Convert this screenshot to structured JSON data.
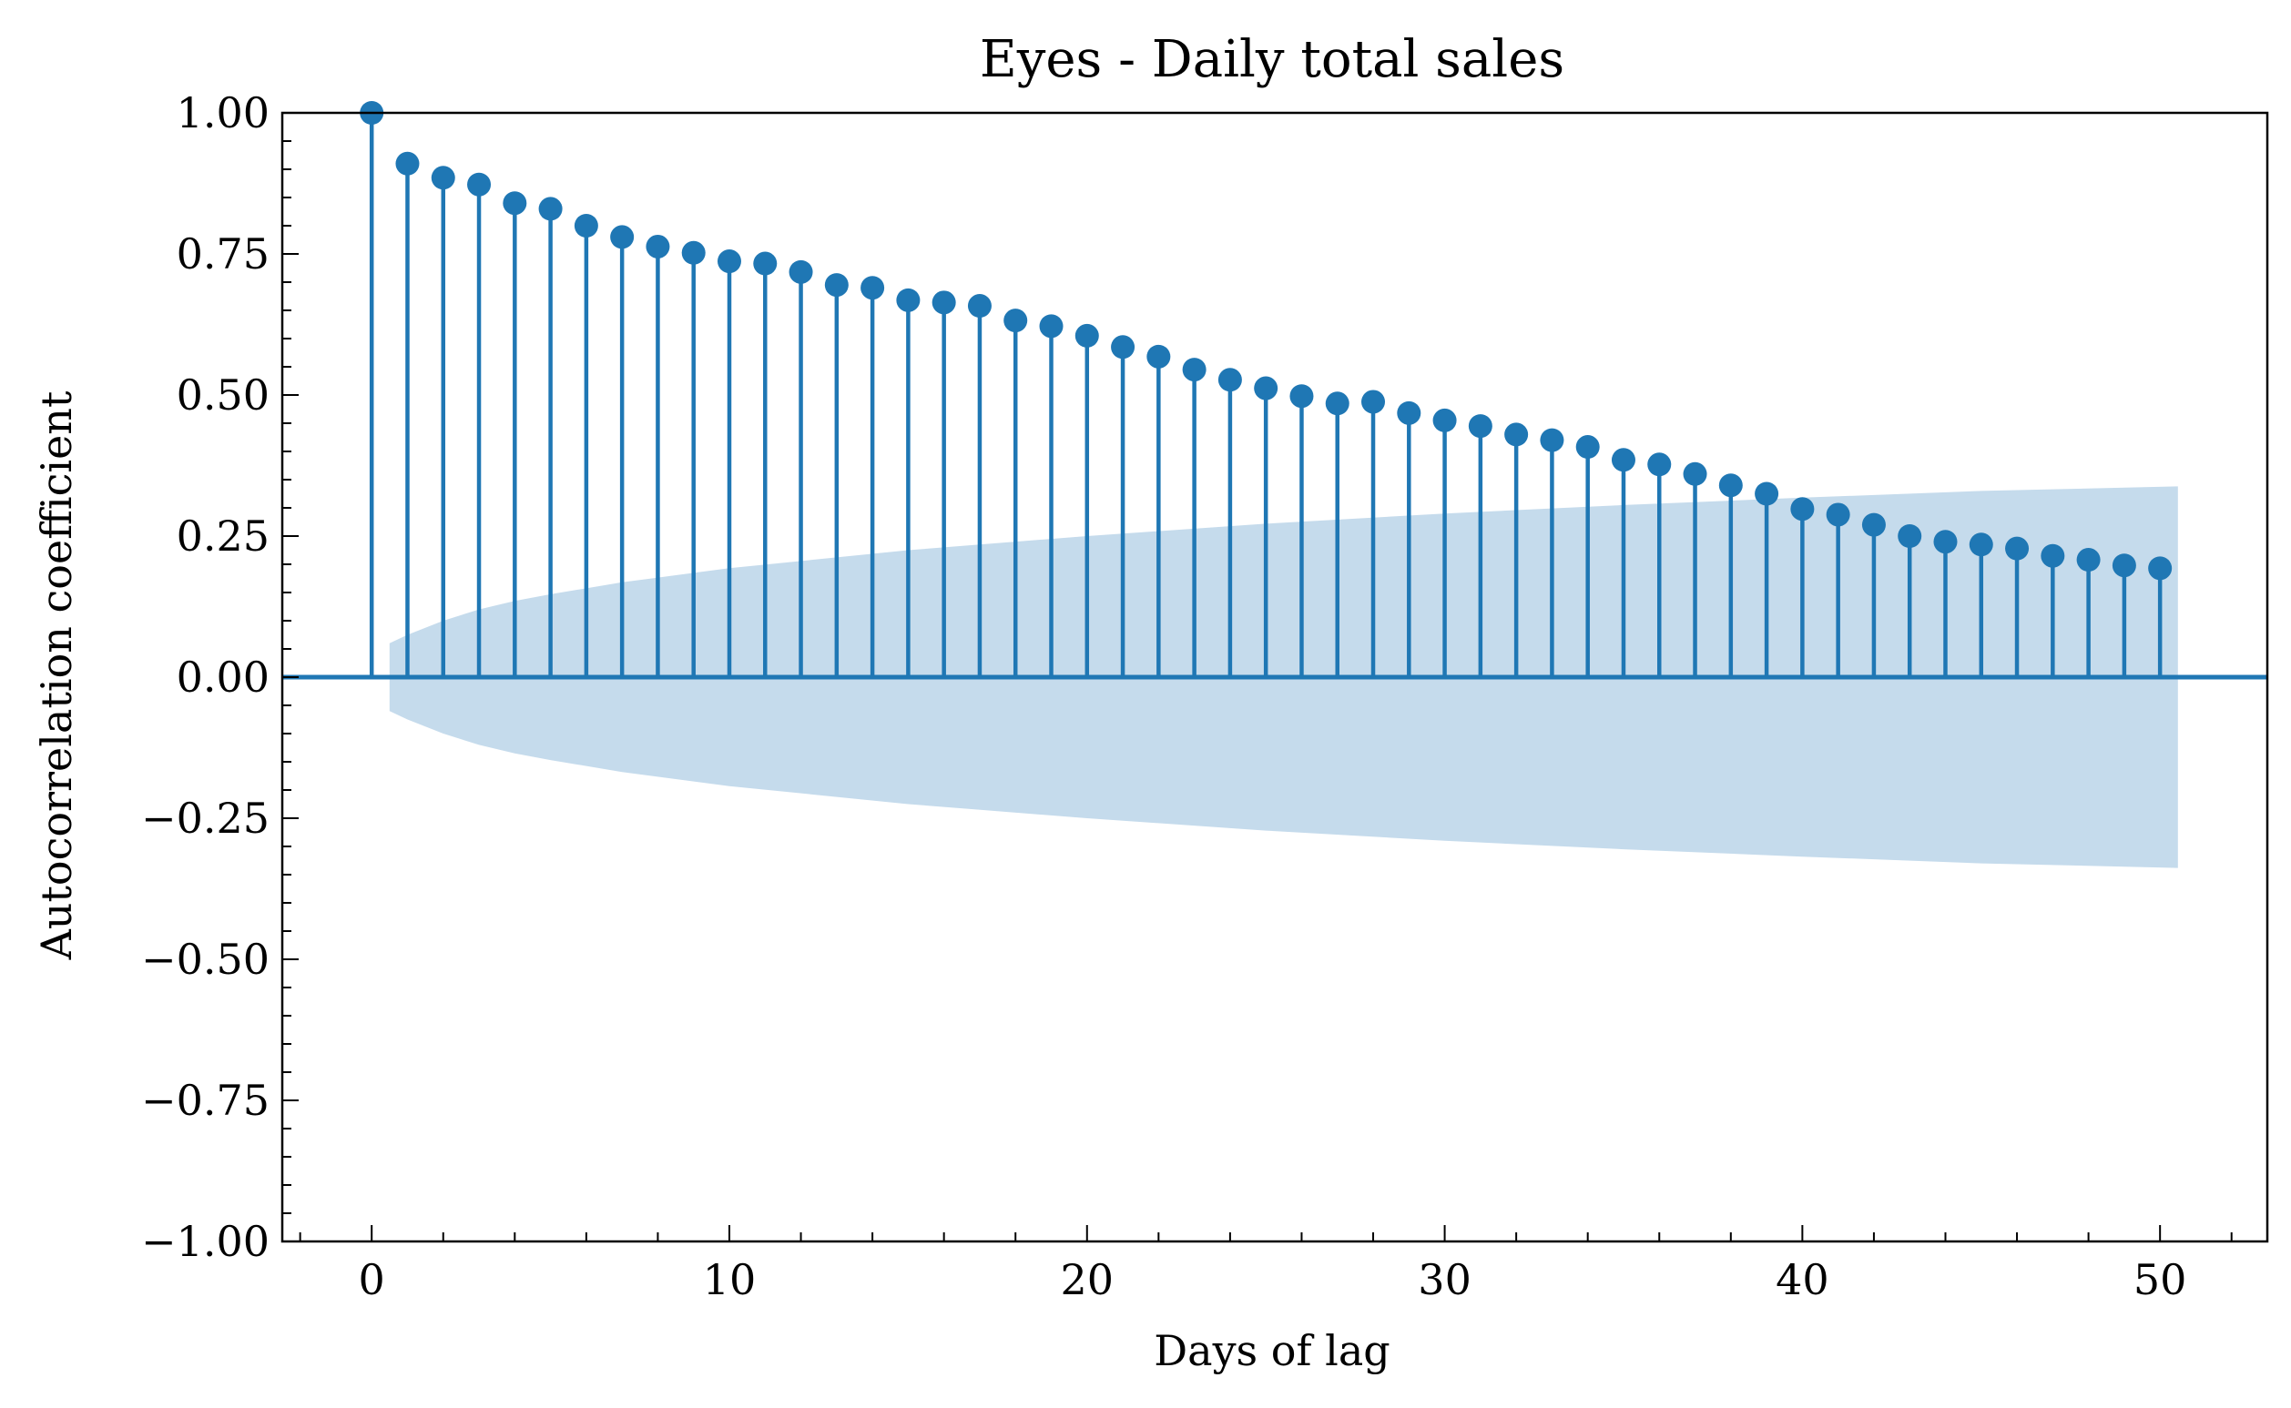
{
  "chart_data": {
    "type": "stem",
    "title": "Eyes - Daily total sales",
    "xlabel": "Days of lag",
    "ylabel": "Autocorrelation coefficient",
    "xlim": [
      -2.5,
      53
    ],
    "ylim": [
      -1.0,
      1.0
    ],
    "xticks": [
      0,
      10,
      20,
      30,
      40,
      50
    ],
    "xtick_labels": [
      "0",
      "10",
      "20",
      "30",
      "40",
      "50"
    ],
    "yticks": [
      -1.0,
      -0.75,
      -0.5,
      -0.25,
      0.0,
      0.25,
      0.5,
      0.75,
      1.0
    ],
    "ytick_labels": [
      "−1.00",
      "−0.75",
      "−0.50",
      "−0.25",
      "0.00",
      "0.25",
      "0.50",
      "0.75",
      "1.00"
    ],
    "grid": false,
    "colors": {
      "series": "#1f77b4",
      "confidence_band": "#c5dbec"
    },
    "series": [
      {
        "lags": [
          0,
          1,
          2,
          3,
          4,
          5,
          6,
          7,
          8,
          9,
          10,
          11,
          12,
          13,
          14,
          15,
          16,
          17,
          18,
          19,
          20,
          21,
          22,
          23,
          24,
          25,
          26,
          27,
          28,
          29,
          30,
          31,
          32,
          33,
          34,
          35,
          36,
          37,
          38,
          39,
          40,
          41,
          42,
          43,
          44,
          45,
          46,
          47,
          48,
          49,
          50
        ],
        "values": [
          1.0,
          0.91,
          0.885,
          0.873,
          0.84,
          0.83,
          0.8,
          0.78,
          0.763,
          0.752,
          0.737,
          0.733,
          0.718,
          0.695,
          0.69,
          0.668,
          0.664,
          0.658,
          0.632,
          0.622,
          0.605,
          0.585,
          0.568,
          0.545,
          0.527,
          0.512,
          0.498,
          0.485,
          0.488,
          0.468,
          0.455,
          0.445,
          0.43,
          0.42,
          0.408,
          0.385,
          0.377,
          0.36,
          0.34,
          0.325,
          0.298,
          0.288,
          0.27,
          0.25,
          0.24,
          0.235,
          0.228,
          0.215,
          0.208,
          0.198,
          0.193
        ]
      }
    ],
    "confidence_band": {
      "lags": [
        0.5,
        1,
        2,
        3,
        4,
        5,
        7,
        10,
        15,
        20,
        25,
        30,
        35,
        40,
        45,
        50.5
      ],
      "upper": [
        0.06,
        0.075,
        0.1,
        0.12,
        0.135,
        0.147,
        0.168,
        0.193,
        0.225,
        0.25,
        0.272,
        0.29,
        0.305,
        0.318,
        0.33,
        0.338
      ]
    }
  }
}
